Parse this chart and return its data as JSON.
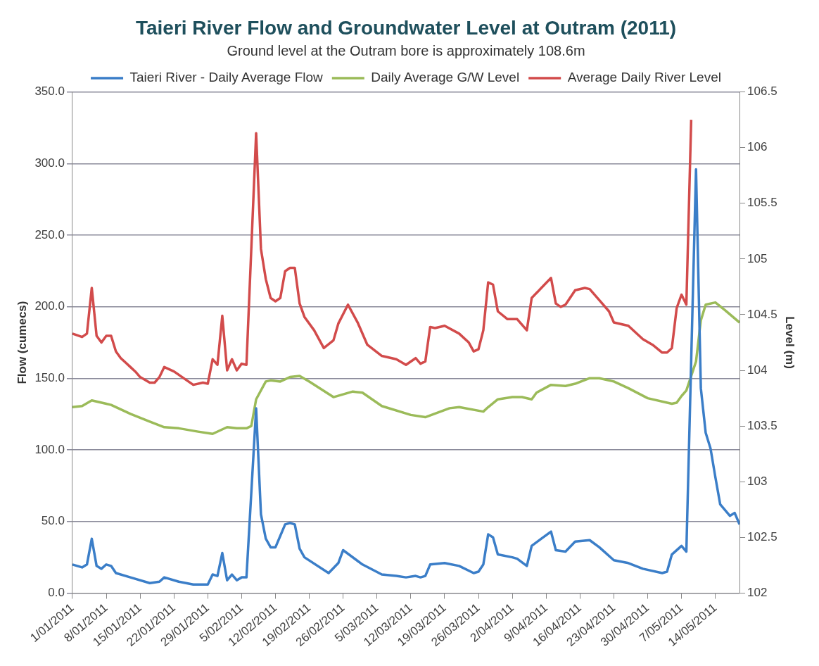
{
  "chart_data": {
    "type": "line",
    "title": "Taieri River Flow and Groundwater Level at Outram (2011)",
    "subtitle": "Ground level at the Outram bore is approximately 108.6m",
    "ylabel": "Flow (cumecs)",
    "y2label": "Level (m)",
    "legend": "top",
    "grid": "y",
    "xlim": [
      "2011-01-01",
      "2011-05-19"
    ],
    "xticks": [
      {
        "value": "2011-01-01",
        "label": "1/01/2011"
      },
      {
        "value": "2011-01-08",
        "label": "8/01/2011"
      },
      {
        "value": "2011-01-15",
        "label": "15/01/2011"
      },
      {
        "value": "2011-01-22",
        "label": "22/01/2011"
      },
      {
        "value": "2011-01-29",
        "label": "29/01/2011"
      },
      {
        "value": "2011-02-05",
        "label": "5/02/2011"
      },
      {
        "value": "2011-02-12",
        "label": "12/02/2011"
      },
      {
        "value": "2011-02-19",
        "label": "19/02/2011"
      },
      {
        "value": "2011-02-26",
        "label": "26/02/2011"
      },
      {
        "value": "2011-03-05",
        "label": "5/03/2011"
      },
      {
        "value": "2011-03-12",
        "label": "12/03/2011"
      },
      {
        "value": "2011-03-19",
        "label": "19/03/2011"
      },
      {
        "value": "2011-03-26",
        "label": "26/03/2011"
      },
      {
        "value": "2011-04-02",
        "label": "2/04/2011"
      },
      {
        "value": "2011-04-09",
        "label": "9/04/2011"
      },
      {
        "value": "2011-04-16",
        "label": "16/04/2011"
      },
      {
        "value": "2011-04-23",
        "label": "23/04/2011"
      },
      {
        "value": "2011-04-30",
        "label": "30/04/2011"
      },
      {
        "value": "2011-05-07",
        "label": "7/05/2011"
      },
      {
        "value": "2011-05-14",
        "label": "14/05/2011"
      }
    ],
    "ylim": [
      0,
      350
    ],
    "yticks": [
      {
        "value": 0,
        "label": "0.0"
      },
      {
        "value": 50,
        "label": "50.0"
      },
      {
        "value": 100,
        "label": "100.0"
      },
      {
        "value": 150,
        "label": "150.0"
      },
      {
        "value": 200,
        "label": "200.0"
      },
      {
        "value": 250,
        "label": "250.0"
      },
      {
        "value": 300,
        "label": "300.0"
      },
      {
        "value": 350,
        "label": "350.0"
      }
    ],
    "y2lim": [
      102,
      106.5
    ],
    "y2ticks": [
      102,
      102.5,
      103,
      103.5,
      104,
      104.5,
      105,
      105.5,
      106,
      106.5
    ],
    "series": [
      {
        "name": "Taieri River - Daily Average Flow",
        "color": "#3b7ec8",
        "axis": "y",
        "x": [
          "2011-01-01",
          "2011-01-03",
          "2011-01-04",
          "2011-01-05",
          "2011-01-06",
          "2011-01-07",
          "2011-01-08",
          "2011-01-09",
          "2011-01-10",
          "2011-01-13",
          "2011-01-17",
          "2011-01-19",
          "2011-01-20",
          "2011-01-23",
          "2011-01-26",
          "2011-01-29",
          "2011-01-30",
          "2011-01-31",
          "2011-02-01",
          "2011-02-02",
          "2011-02-03",
          "2011-02-04",
          "2011-02-05",
          "2011-02-06",
          "2011-02-08",
          "2011-02-09",
          "2011-02-10",
          "2011-02-11",
          "2011-02-12",
          "2011-02-14",
          "2011-02-15",
          "2011-02-16",
          "2011-02-17",
          "2011-02-18",
          "2011-02-23",
          "2011-02-25",
          "2011-02-26",
          "2011-03-02",
          "2011-03-06",
          "2011-03-09",
          "2011-03-11",
          "2011-03-13",
          "2011-03-14",
          "2011-03-15",
          "2011-03-16",
          "2011-03-19",
          "2011-03-22",
          "2011-03-25",
          "2011-03-26",
          "2011-03-27",
          "2011-03-28",
          "2011-03-29",
          "2011-03-30",
          "2011-04-02",
          "2011-04-03",
          "2011-04-05",
          "2011-04-06",
          "2011-04-08",
          "2011-04-10",
          "2011-04-11",
          "2011-04-13",
          "2011-04-15",
          "2011-04-18",
          "2011-04-20",
          "2011-04-23",
          "2011-04-26",
          "2011-04-29",
          "2011-05-03",
          "2011-05-04",
          "2011-05-05",
          "2011-05-07",
          "2011-05-08",
          "2011-05-10",
          "2011-05-11",
          "2011-05-12",
          "2011-05-13",
          "2011-05-14",
          "2011-05-15",
          "2011-05-17",
          "2011-05-18",
          "2011-05-19"
        ],
        "values": [
          20,
          18,
          20,
          38,
          19,
          17,
          20,
          19,
          14,
          11,
          7,
          8,
          11,
          8,
          6,
          6,
          13,
          12,
          28,
          9,
          13,
          9,
          11,
          11,
          129,
          55,
          38,
          32,
          32,
          48,
          49,
          48,
          31,
          25,
          14,
          21,
          30,
          20,
          13,
          12,
          11,
          12,
          11,
          12,
          20,
          21,
          19,
          14,
          15,
          20,
          41,
          39,
          27,
          25,
          24,
          19,
          33,
          38,
          43,
          30,
          29,
          36,
          37,
          32,
          23,
          21,
          17,
          14,
          15,
          27,
          33,
          29,
          296,
          143,
          112,
          101,
          81,
          62,
          54,
          56,
          48
        ]
      },
      {
        "name": "Daily Average G/W Level",
        "color": "#9bbb59",
        "axis": "y2",
        "x": [
          "2011-01-01",
          "2011-01-03",
          "2011-01-05",
          "2011-01-08",
          "2011-01-09",
          "2011-01-13",
          "2011-01-17",
          "2011-01-20",
          "2011-01-23",
          "2011-01-27",
          "2011-01-30",
          "2011-02-02",
          "2011-02-04",
          "2011-02-06",
          "2011-02-07",
          "2011-02-08",
          "2011-02-10",
          "2011-02-11",
          "2011-02-13",
          "2011-02-15",
          "2011-02-17",
          "2011-02-19",
          "2011-02-24",
          "2011-02-28",
          "2011-03-02",
          "2011-03-06",
          "2011-03-12",
          "2011-03-15",
          "2011-03-20",
          "2011-03-22",
          "2011-03-27",
          "2011-03-28",
          "2011-03-30",
          "2011-04-02",
          "2011-04-04",
          "2011-04-06",
          "2011-04-07",
          "2011-04-10",
          "2011-04-13",
          "2011-04-15",
          "2011-04-18",
          "2011-04-20",
          "2011-04-23",
          "2011-04-26",
          "2011-04-30",
          "2011-05-05",
          "2011-05-06",
          "2011-05-07",
          "2011-05-08",
          "2011-05-10",
          "2011-05-11",
          "2011-05-12",
          "2011-05-14",
          "2011-05-16",
          "2011-05-19"
        ],
        "values": [
          103.67,
          103.68,
          103.73,
          103.7,
          103.69,
          103.61,
          103.54,
          103.49,
          103.48,
          103.45,
          103.43,
          103.49,
          103.48,
          103.48,
          103.5,
          103.74,
          103.9,
          103.91,
          103.9,
          103.94,
          103.95,
          103.9,
          103.76,
          103.81,
          103.8,
          103.68,
          103.6,
          103.58,
          103.66,
          103.67,
          103.63,
          103.67,
          103.74,
          103.76,
          103.76,
          103.74,
          103.8,
          103.87,
          103.86,
          103.88,
          103.93,
          103.93,
          103.9,
          103.84,
          103.75,
          103.7,
          103.71,
          103.77,
          103.82,
          104.08,
          104.45,
          104.59,
          104.61,
          104.54,
          104.43
        ]
      },
      {
        "name": "Average Daily River Level",
        "color": "#d24b4b",
        "axis": "y2",
        "x": [
          "2011-01-01",
          "2011-01-03",
          "2011-01-04",
          "2011-01-05",
          "2011-01-06",
          "2011-01-07",
          "2011-01-08",
          "2011-01-09",
          "2011-01-10",
          "2011-01-11",
          "2011-01-12",
          "2011-01-13",
          "2011-01-14",
          "2011-01-15",
          "2011-01-17",
          "2011-01-18",
          "2011-01-19",
          "2011-01-20",
          "2011-01-22",
          "2011-01-24",
          "2011-01-26",
          "2011-01-28",
          "2011-01-29",
          "2011-01-30",
          "2011-01-31",
          "2011-02-01",
          "2011-02-02",
          "2011-02-03",
          "2011-02-04",
          "2011-02-05",
          "2011-02-06",
          "2011-02-08",
          "2011-02-09",
          "2011-02-10",
          "2011-02-11",
          "2011-02-12",
          "2011-02-13",
          "2011-02-14",
          "2011-02-15",
          "2011-02-16",
          "2011-02-17",
          "2011-02-18",
          "2011-02-20",
          "2011-02-22",
          "2011-02-24",
          "2011-02-25",
          "2011-02-27",
          "2011-03-01",
          "2011-03-03",
          "2011-03-06",
          "2011-03-09",
          "2011-03-11",
          "2011-03-13",
          "2011-03-14",
          "2011-03-15",
          "2011-03-16",
          "2011-03-17",
          "2011-03-19",
          "2011-03-22",
          "2011-03-24",
          "2011-03-25",
          "2011-03-26",
          "2011-03-27",
          "2011-03-28",
          "2011-03-29",
          "2011-03-30",
          "2011-04-01",
          "2011-04-03",
          "2011-04-05",
          "2011-04-06",
          "2011-04-08",
          "2011-04-10",
          "2011-04-11",
          "2011-04-12",
          "2011-04-13",
          "2011-04-15",
          "2011-04-17",
          "2011-04-18",
          "2011-04-20",
          "2011-04-22",
          "2011-04-23",
          "2011-04-26",
          "2011-04-29",
          "2011-05-01",
          "2011-05-03",
          "2011-05-04",
          "2011-05-05",
          "2011-05-06",
          "2011-05-07",
          "2011-05-08",
          "2011-05-09"
        ],
        "values": [
          104.33,
          104.3,
          104.33,
          104.74,
          104.31,
          104.25,
          104.31,
          104.31,
          104.17,
          104.11,
          104.07,
          104.03,
          103.99,
          103.94,
          103.89,
          103.89,
          103.94,
          104.03,
          103.99,
          103.93,
          103.87,
          103.89,
          103.88,
          104.1,
          104.05,
          104.49,
          104,
          104.1,
          104,
          104.06,
          104.05,
          106.13,
          105.09,
          104.82,
          104.65,
          104.62,
          104.65,
          104.89,
          104.92,
          104.92,
          104.6,
          104.48,
          104.36,
          104.2,
          104.27,
          104.42,
          104.59,
          104.43,
          104.23,
          104.13,
          104.1,
          104.05,
          104.11,
          104.06,
          104.08,
          104.39,
          104.38,
          104.4,
          104.33,
          104.25,
          104.17,
          104.19,
          104.36,
          104.79,
          104.77,
          104.53,
          104.46,
          104.46,
          104.36,
          104.65,
          104.74,
          104.83,
          104.6,
          104.57,
          104.59,
          104.72,
          104.74,
          104.73,
          104.63,
          104.53,
          104.43,
          104.4,
          104.28,
          104.23,
          104.16,
          104.16,
          104.2,
          104.56,
          104.68,
          104.59,
          106.25
        ]
      }
    ]
  }
}
